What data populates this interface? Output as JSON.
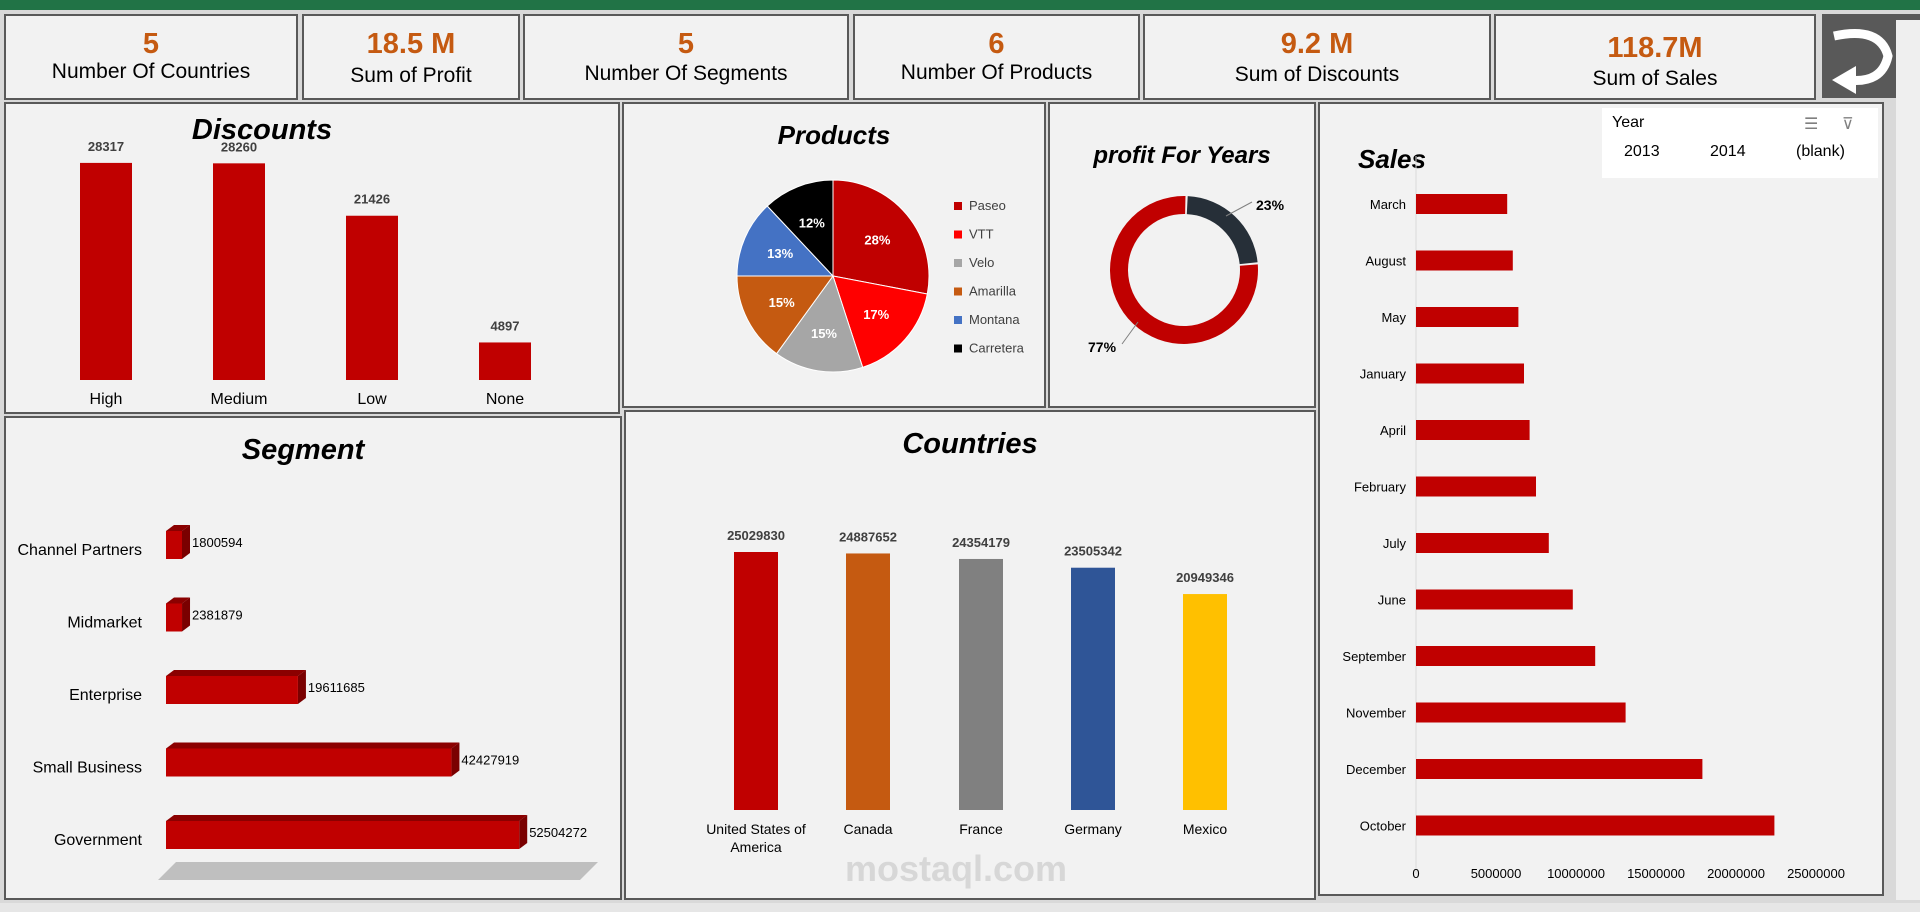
{
  "kpis": [
    {
      "value": "5",
      "label": "Number Of Countries"
    },
    {
      "value": "18.5 M",
      "label": "Sum of Profit"
    },
    {
      "value": "5",
      "label": "Number Of Segments"
    },
    {
      "value": "6",
      "label": "Number Of Products"
    },
    {
      "value": "9.2 M",
      "label": "Sum of Discounts"
    },
    {
      "value": "118.7M",
      "label": "Sum of Sales"
    }
  ],
  "slicer": {
    "title": "Year",
    "items": [
      "2013",
      "2014",
      "(blank)"
    ]
  },
  "watermark": "mostaql.com",
  "colors": {
    "red": "#c00000",
    "orange": "#c55a11",
    "gray": "#808080",
    "blue": "#2f5597",
    "yellow": "#ffc000",
    "dark": "#262f38"
  },
  "chart_data": [
    {
      "type": "bar",
      "title": "Discounts",
      "categories": [
        "High",
        "Medium",
        "Low",
        "None"
      ],
      "values": [
        28317,
        28260,
        21426,
        4897
      ],
      "ylim": [
        0,
        30000
      ]
    },
    {
      "type": "pie",
      "title": "Products",
      "labels": [
        "Paseo",
        "VTT",
        "Velo",
        "Amarilla",
        "Montana",
        "Carretera"
      ],
      "values": [
        28,
        17,
        15,
        15,
        13,
        12
      ],
      "colors": [
        "#c00000",
        "#ff0000",
        "#a6a6a6",
        "#c55a11",
        "#4472c4",
        "#000000"
      ]
    },
    {
      "type": "pie",
      "title": "profit For Years",
      "labels": [
        "77%",
        "23%"
      ],
      "values": [
        77,
        23
      ],
      "colors": [
        "#c00000",
        "#262f38"
      ]
    },
    {
      "type": "bar",
      "title": "Segment",
      "categories": [
        "Channel Partners",
        "Midmarket",
        "Enterprise",
        "Small Business",
        "Government"
      ],
      "values": [
        1800594,
        2381879,
        19611685,
        42427919,
        52504272
      ]
    },
    {
      "type": "bar",
      "title": "Countries",
      "categories": [
        "United States of America",
        "Canada",
        "France",
        "Germany",
        "Mexico"
      ],
      "values": [
        25029830,
        24887652,
        24354179,
        23505342,
        20949346
      ],
      "colors": [
        "#c00000",
        "#c55a11",
        "#808080",
        "#2f5597",
        "#ffc000"
      ]
    },
    {
      "type": "bar",
      "title": "Sales",
      "categories": [
        "March",
        "August",
        "May",
        "January",
        "April",
        "February",
        "July",
        "June",
        "September",
        "November",
        "December",
        "October"
      ],
      "values": [
        5700000,
        6050000,
        6400000,
        6750000,
        7100000,
        7500000,
        8300000,
        9800000,
        11200000,
        13100000,
        17900000,
        22400000
      ],
      "xticks": [
        "0",
        "5000000",
        "10000000",
        "15000000",
        "20000000",
        "25000000"
      ],
      "xlim": [
        0,
        25000000
      ]
    }
  ]
}
